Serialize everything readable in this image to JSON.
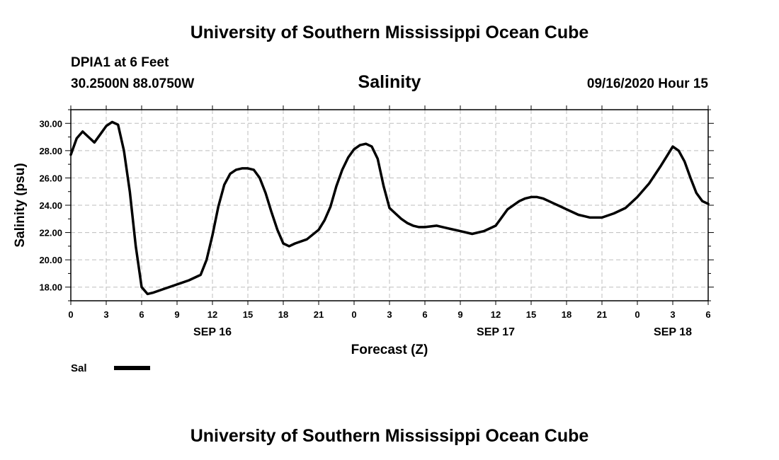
{
  "header": {
    "title": "University of Southern Mississippi Ocean Cube",
    "station": "DPIA1 at 6 Feet",
    "coords": "30.2500N 88.0750W",
    "datetime": "09/16/2020 Hour 15"
  },
  "footer": {
    "title": "University of Southern Mississippi Ocean Cube"
  },
  "chart_data": {
    "type": "line",
    "title": "Salinity",
    "xlabel": "Forecast (Z)",
    "ylabel": "Salinity (psu)",
    "xlim": [
      0,
      54
    ],
    "ylim": [
      17.0,
      31.0
    ],
    "grid": true,
    "x_ticks": [
      0,
      3,
      6,
      9,
      12,
      15,
      18,
      21,
      24,
      27,
      30,
      33,
      36,
      39,
      42,
      45,
      48,
      51,
      54
    ],
    "x_tick_labels": [
      "0",
      "3",
      "6",
      "9",
      "12",
      "15",
      "18",
      "21",
      "0",
      "3",
      "6",
      "9",
      "12",
      "15",
      "18",
      "21",
      "0",
      "3",
      "6"
    ],
    "y_ticks": [
      18,
      20,
      22,
      24,
      26,
      28,
      30
    ],
    "y_tick_labels": [
      "18.00",
      "20.00",
      "22.00",
      "24.00",
      "26.00",
      "28.00",
      "30.00"
    ],
    "day_labels": [
      {
        "x": 12,
        "label": "SEP 16"
      },
      {
        "x": 36,
        "label": "SEP 17"
      },
      {
        "x": 51,
        "label": "SEP 18"
      }
    ],
    "legend": [
      {
        "name": "Sal",
        "color": "#000000"
      }
    ],
    "series": [
      {
        "name": "Sal",
        "color": "#000000",
        "x": [
          0,
          0.5,
          1,
          1.5,
          2,
          2.5,
          3,
          3.5,
          4,
          4.5,
          5,
          5.5,
          6,
          6.5,
          7,
          8,
          9,
          10,
          11,
          11.5,
          12,
          12.5,
          13,
          13.5,
          14,
          14.5,
          15,
          15.5,
          16,
          16.5,
          17,
          17.5,
          18,
          18.5,
          19,
          20,
          21,
          21.5,
          22,
          22.5,
          23,
          23.5,
          24,
          24.5,
          25,
          25.5,
          26,
          26.5,
          27,
          27.5,
          28,
          28.5,
          29,
          29.5,
          30,
          31,
          32,
          33,
          34,
          35,
          36,
          37,
          38,
          38.5,
          39,
          39.5,
          40,
          40.5,
          41,
          41.5,
          42,
          42.5,
          43,
          43.5,
          44,
          45,
          46,
          47,
          48,
          49,
          50,
          50.5,
          51,
          51.5,
          52,
          52.5,
          53,
          53.5,
          54
        ],
        "values": [
          27.7,
          28.9,
          29.4,
          29.0,
          28.6,
          29.2,
          29.8,
          30.1,
          29.9,
          28.0,
          25.0,
          21.0,
          18.0,
          17.5,
          17.6,
          17.9,
          18.2,
          18.5,
          18.9,
          20.0,
          21.8,
          23.9,
          25.5,
          26.3,
          26.6,
          26.7,
          26.7,
          26.6,
          26.0,
          24.9,
          23.5,
          22.2,
          21.2,
          21.0,
          21.2,
          21.5,
          22.2,
          22.9,
          23.9,
          25.4,
          26.6,
          27.5,
          28.1,
          28.4,
          28.5,
          28.3,
          27.4,
          25.4,
          23.8,
          23.4,
          23.0,
          22.7,
          22.5,
          22.4,
          22.4,
          22.5,
          22.3,
          22.1,
          21.9,
          22.1,
          22.5,
          23.7,
          24.3,
          24.5,
          24.6,
          24.6,
          24.5,
          24.3,
          24.1,
          23.9,
          23.7,
          23.5,
          23.3,
          23.2,
          23.1,
          23.1,
          23.4,
          23.8,
          24.6,
          25.6,
          26.9,
          27.6,
          28.3,
          28.0,
          27.2,
          26.0,
          24.9,
          24.3,
          24.1
        ]
      }
    ]
  }
}
